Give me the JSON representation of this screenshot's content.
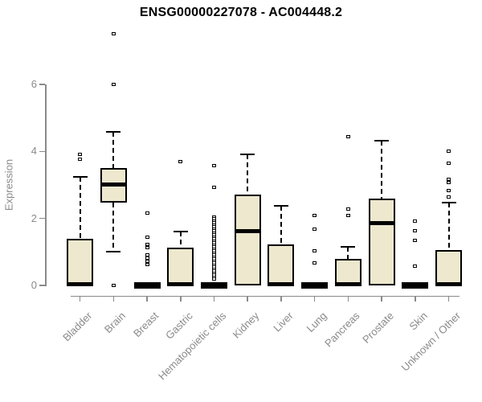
{
  "chart_data": {
    "type": "box",
    "title": "ENSG00000227078 - AC004448.2",
    "ylabel": "Expression",
    "xlabel": "",
    "ylim": [
      0,
      7.6
    ],
    "yticks": [
      0,
      2,
      4,
      6
    ],
    "grid": false,
    "legend": false,
    "box_fill": "#EDE8CE",
    "box_stroke": "#000000",
    "axis_color": "#8a8a8a",
    "categories": [
      "Bladder",
      "Brain",
      "Breast",
      "Gastric",
      "Hematopoietic cells",
      "Kidney",
      "Liver",
      "Lung",
      "Pancreas",
      "Prostate",
      "Skin",
      "Unknown / Other"
    ],
    "boxes": [
      {
        "category": "Bladder",
        "q1": 0,
        "median": 0.04,
        "q3": 1.38,
        "whisker_low": null,
        "whisker_high": 3.25,
        "outliers": [
          3.76,
          3.9
        ]
      },
      {
        "category": "Brain",
        "q1": 2.47,
        "median": 3.0,
        "q3": 3.5,
        "whisker_low": 1.0,
        "whisker_high": 4.58,
        "outliers": [
          7.5,
          6.0,
          0.0
        ]
      },
      {
        "category": "Breast",
        "q1": 0,
        "median": 0.02,
        "q3": 0.08,
        "whisker_low": null,
        "whisker_high": null,
        "outliers": [
          2.15,
          1.45,
          1.22,
          1.13,
          0.92,
          0.82,
          0.73,
          0.63
        ]
      },
      {
        "category": "Gastric",
        "q1": 0,
        "median": 0.04,
        "q3": 1.13,
        "whisker_low": null,
        "whisker_high": 1.61,
        "outliers": [
          3.7
        ]
      },
      {
        "category": "Hematopoietic cells",
        "q1": 0,
        "median": 0.02,
        "q3": 0.08,
        "whisker_low": null,
        "whisker_high": null,
        "outliers": [
          3.58,
          2.92,
          2.04,
          1.98,
          1.92,
          1.86,
          1.8,
          1.74,
          1.68,
          1.62,
          1.56,
          1.5,
          1.44,
          1.38,
          1.32,
          1.26,
          1.2,
          1.14,
          1.08,
          1.02,
          0.96,
          0.9,
          0.84,
          0.78,
          0.72,
          0.66,
          0.6,
          0.54,
          0.48,
          0.42,
          0.36,
          0.3,
          0.24,
          0.2
        ]
      },
      {
        "category": "Kidney",
        "q1": 0,
        "median": 1.63,
        "q3": 2.7,
        "whisker_low": null,
        "whisker_high": 3.91,
        "outliers": []
      },
      {
        "category": "Liver",
        "q1": 0,
        "median": 0.04,
        "q3": 1.22,
        "whisker_low": null,
        "whisker_high": 2.38,
        "outliers": []
      },
      {
        "category": "Lung",
        "q1": 0,
        "median": 0.02,
        "q3": 0.08,
        "whisker_low": null,
        "whisker_high": null,
        "outliers": [
          2.08,
          1.68,
          1.03,
          0.67
        ]
      },
      {
        "category": "Pancreas",
        "q1": 0,
        "median": 0.04,
        "q3": 0.8,
        "whisker_low": null,
        "whisker_high": 1.15,
        "outliers": [
          4.44,
          2.28,
          2.08
        ]
      },
      {
        "category": "Prostate",
        "q1": 0,
        "median": 1.87,
        "q3": 2.6,
        "whisker_low": null,
        "whisker_high": 4.32,
        "outliers": []
      },
      {
        "category": "Skin",
        "q1": 0,
        "median": 0.02,
        "q3": 0.08,
        "whisker_low": null,
        "whisker_high": null,
        "outliers": [
          1.92,
          1.63,
          1.34,
          0.58
        ]
      },
      {
        "category": "Unknown / Other",
        "q1": 0,
        "median": 0.04,
        "q3": 1.05,
        "whisker_low": null,
        "whisker_high": 2.47,
        "outliers": [
          4.0,
          3.65,
          3.17,
          3.08,
          2.82,
          2.65
        ]
      }
    ]
  }
}
